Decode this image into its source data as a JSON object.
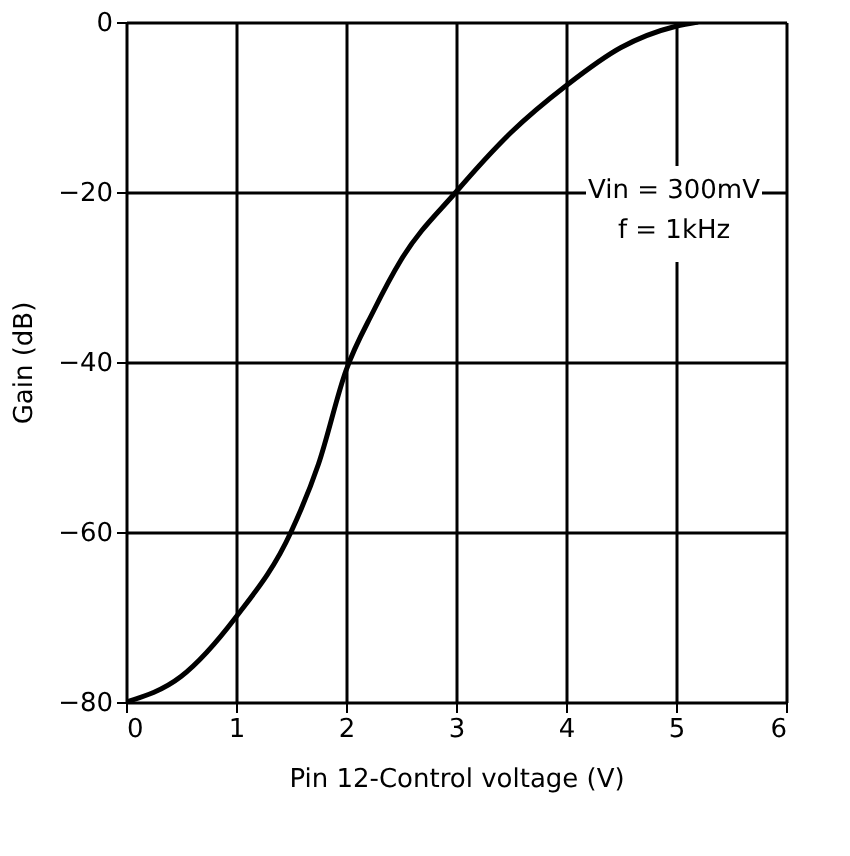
{
  "chart_data": {
    "type": "line",
    "xlabel": "Pin 12-Control voltage (V)",
    "ylabel": "Gain (dB)",
    "x": [
      0,
      0.5,
      1,
      1.5,
      1.75,
      2,
      2.25,
      2.5,
      3,
      3.5,
      4,
      4.5,
      5,
      5.2
    ],
    "series": [
      {
        "color": "#000000",
        "values": [
          -80,
          -77,
          -70,
          -60,
          -52,
          -41,
          -34,
          -28,
          -20,
          -13,
          -7.5,
          -3,
          -0.5,
          0
        ]
      }
    ],
    "xlim": [
      0,
      6
    ],
    "ylim": [
      -80,
      0
    ],
    "xticks": [
      0,
      1,
      2,
      3,
      4,
      5,
      6
    ],
    "yticks": [
      -80,
      -60,
      -40,
      -20,
      0
    ],
    "grid": true,
    "marker": "none",
    "line_style": "solid",
    "annotations": [
      "Vin = 300mV",
      "f = 1kHz"
    ]
  }
}
